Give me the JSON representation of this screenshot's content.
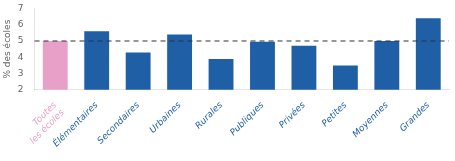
{
  "chart_data": {
    "type": "bar",
    "categories": [
      "Toutes\nles écoles",
      "Élémentaires",
      "Secondaires",
      "Urbaines",
      "Rurales",
      "Publiques",
      "Privées",
      "Petites",
      "Moyennes",
      "Grandes"
    ],
    "values": [
      5.0,
      5.6,
      4.3,
      5.4,
      3.9,
      4.95,
      4.7,
      3.5,
      5.0,
      6.4
    ],
    "colors": [
      "#e8a0c8",
      "#1f5fa6",
      "#1f5fa6",
      "#1f5fa6",
      "#1f5fa6",
      "#1f5fa6",
      "#1f5fa6",
      "#1f5fa6",
      "#1f5fa6",
      "#1f5fa6"
    ],
    "ylabel": "% des écoles",
    "ylim": [
      2,
      7
    ],
    "yticks": [
      2,
      3,
      4,
      5,
      6,
      7
    ],
    "reference_line": 5.0,
    "grid": false
  }
}
